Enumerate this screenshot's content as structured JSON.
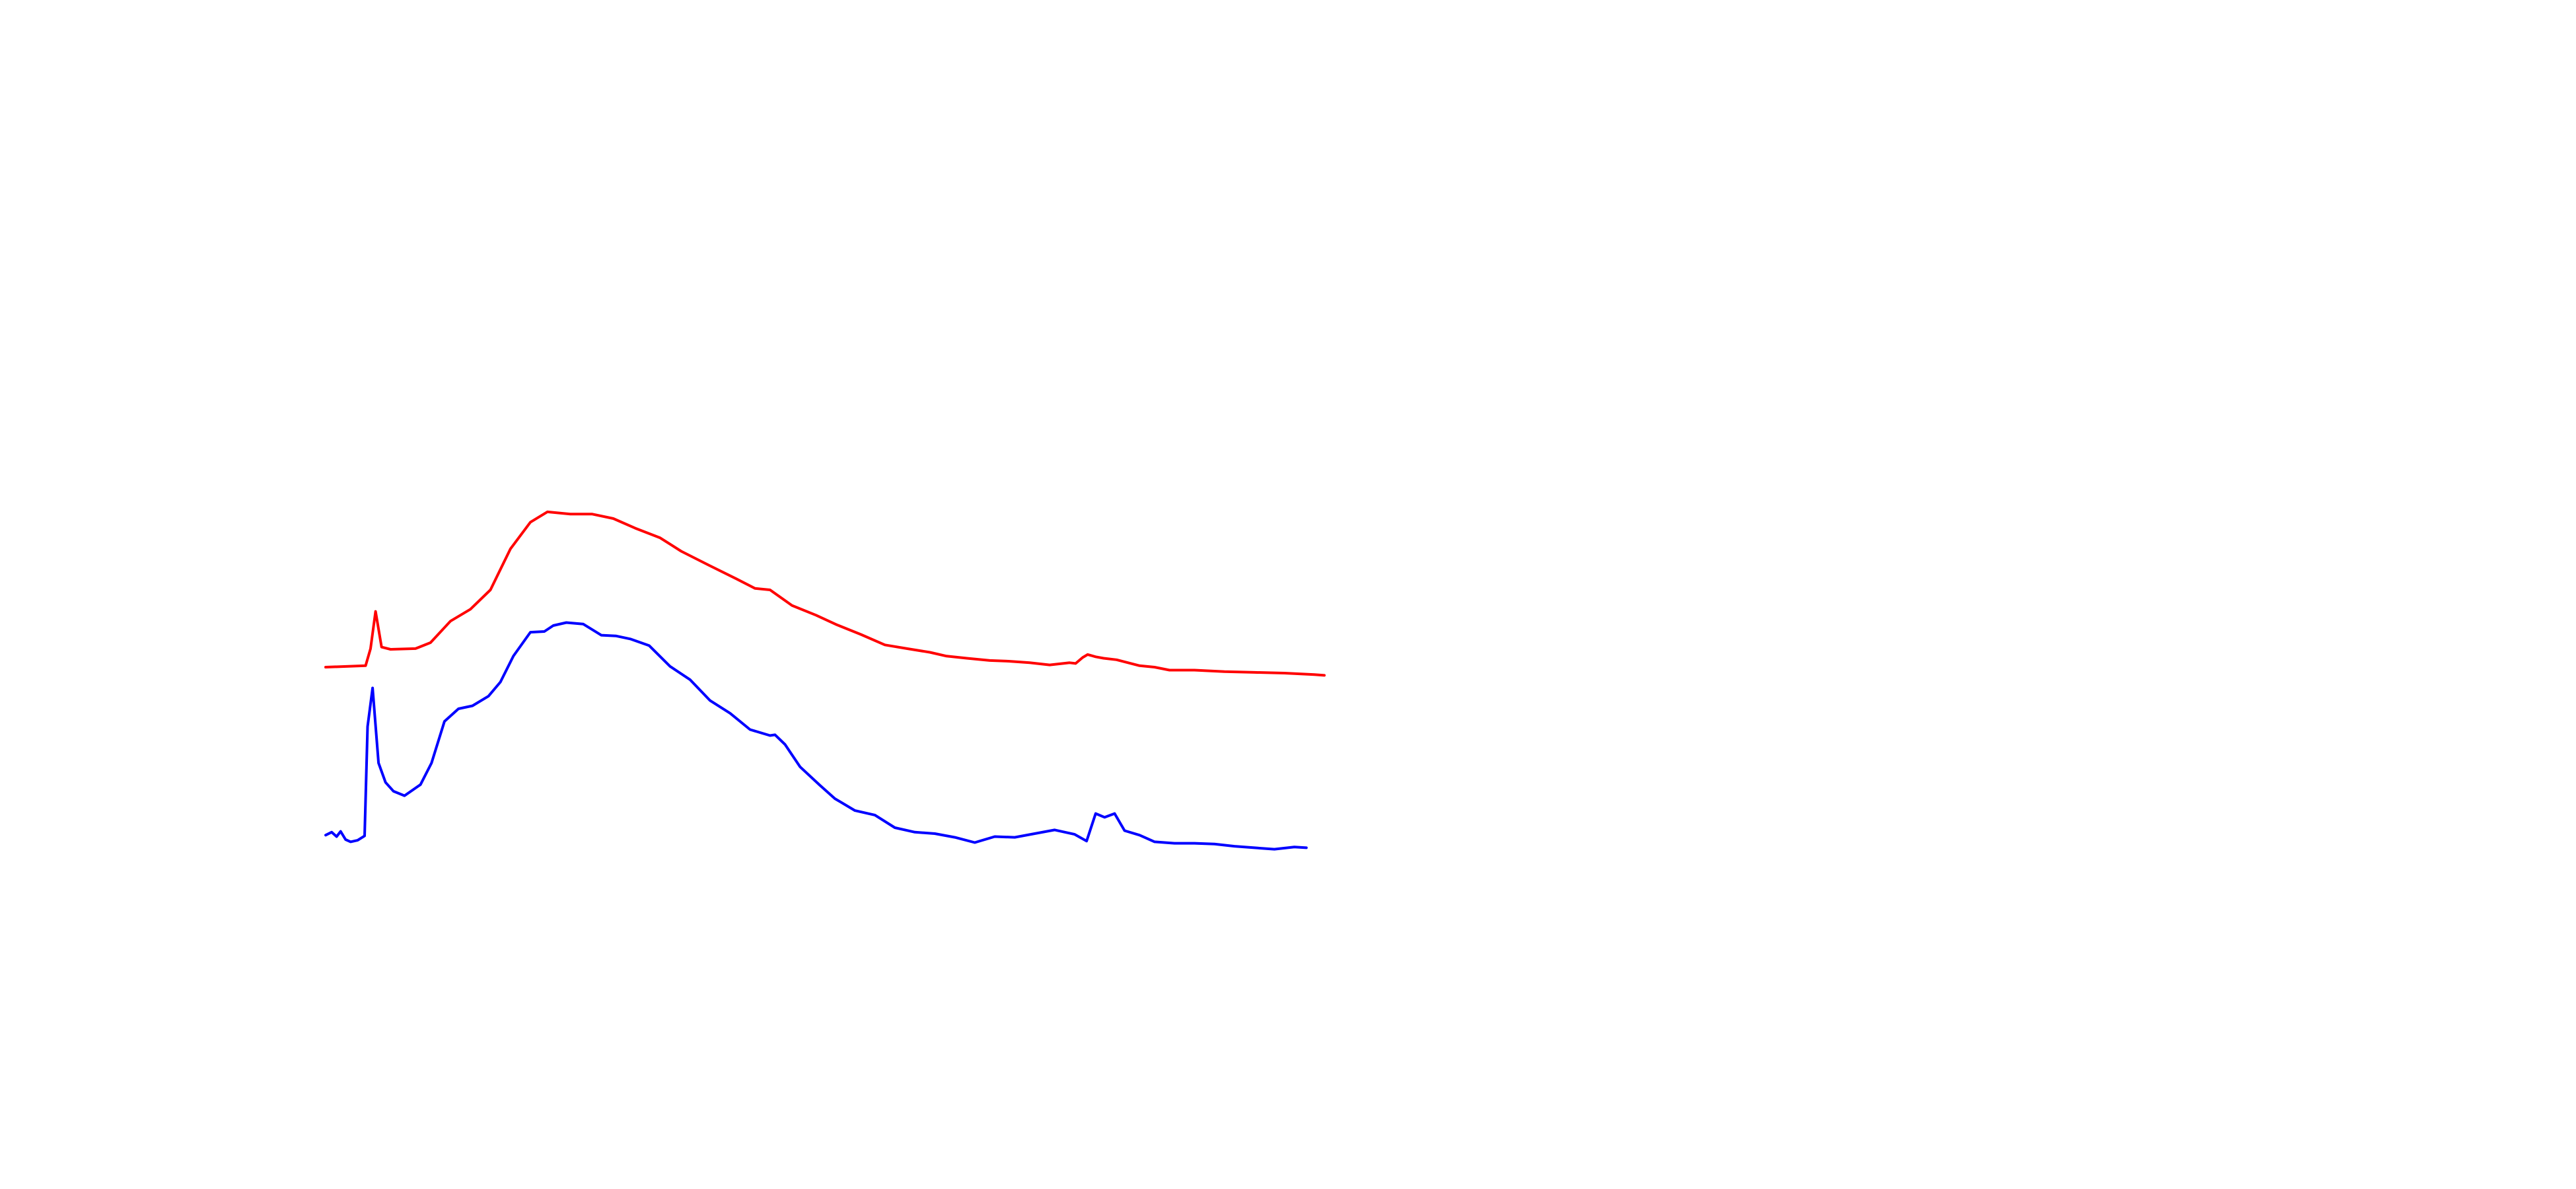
{
  "chart_data": {
    "type": "line",
    "title": "",
    "xlabel": "",
    "ylabel": "",
    "axes_visible": false,
    "grid": false,
    "legend": "none",
    "x_range": [
      0,
      100
    ],
    "y_range": [
      0,
      100
    ],
    "series": [
      {
        "color": "#ff0000",
        "points": [
          [
            0,
            44
          ],
          [
            4,
            44.2
          ],
          [
            4.5,
            46.5
          ],
          [
            5,
            51.5
          ],
          [
            5.6,
            46.7
          ],
          [
            6.5,
            46.4
          ],
          [
            9,
            46.5
          ],
          [
            10.5,
            47.3
          ],
          [
            12.5,
            50.2
          ],
          [
            14.5,
            51.8
          ],
          [
            16.5,
            54.4
          ],
          [
            18.5,
            59.9
          ],
          [
            20.5,
            63.5
          ],
          [
            22.2,
            64.9
          ],
          [
            24.5,
            64.6
          ],
          [
            26.7,
            64.6
          ],
          [
            28.8,
            64.0
          ],
          [
            31,
            62.7
          ],
          [
            33.5,
            61.4
          ],
          [
            35.6,
            59.6
          ],
          [
            38.4,
            57.7
          ],
          [
            41.1,
            55.9
          ],
          [
            43,
            54.6
          ],
          [
            44.5,
            54.4
          ],
          [
            46.7,
            52.3
          ],
          [
            49.1,
            51.0
          ],
          [
            51.2,
            49.7
          ],
          [
            53.6,
            48.4
          ],
          [
            56,
            47.0
          ],
          [
            58.2,
            46.5
          ],
          [
            60.5,
            46.0
          ],
          [
            62.1,
            45.5
          ],
          [
            64.2,
            45.2
          ],
          [
            66.5,
            44.9
          ],
          [
            68.4,
            44.8
          ],
          [
            70.5,
            44.6
          ],
          [
            72.5,
            44.3
          ],
          [
            74.5,
            44.6
          ],
          [
            75.1,
            44.5
          ],
          [
            75.8,
            45.3
          ],
          [
            76.3,
            45.7
          ],
          [
            77.1,
            45.4
          ],
          [
            77.9,
            45.2
          ],
          [
            79.2,
            45.0
          ],
          [
            81.5,
            44.2
          ],
          [
            83,
            44.0
          ],
          [
            84.5,
            43.6
          ],
          [
            87,
            43.6
          ],
          [
            90,
            43.4
          ],
          [
            93,
            43.3
          ],
          [
            96,
            43.2
          ],
          [
            99,
            43.0
          ],
          [
            100,
            42.9
          ]
        ]
      },
      {
        "color": "#0000ff",
        "points": [
          [
            0,
            21.4
          ],
          [
            0.6,
            21.8
          ],
          [
            1.1,
            21.2
          ],
          [
            1.5,
            21.9
          ],
          [
            2,
            20.8
          ],
          [
            2.5,
            20.5
          ],
          [
            3.2,
            20.7
          ],
          [
            3.9,
            21.3
          ],
          [
            4.2,
            36
          ],
          [
            4.7,
            41.2
          ],
          [
            5.3,
            31.1
          ],
          [
            6,
            28.5
          ],
          [
            6.8,
            27.3
          ],
          [
            7.9,
            26.7
          ],
          [
            9.5,
            28.2
          ],
          [
            10.6,
            31.1
          ],
          [
            11.9,
            36.7
          ],
          [
            13.3,
            38.4
          ],
          [
            14.7,
            38.8
          ],
          [
            16.3,
            40.1
          ],
          [
            17.5,
            42.0
          ],
          [
            18.8,
            45.5
          ],
          [
            20.5,
            48.7
          ],
          [
            21.9,
            48.8
          ],
          [
            22.8,
            49.6
          ],
          [
            24.1,
            50.0
          ],
          [
            25.8,
            49.8
          ],
          [
            27.6,
            48.3
          ],
          [
            29.1,
            48.2
          ],
          [
            30.5,
            47.8
          ],
          [
            32.4,
            46.9
          ],
          [
            34.5,
            44.1
          ],
          [
            36.5,
            42.3
          ],
          [
            38.5,
            39.5
          ],
          [
            40.5,
            37.8
          ],
          [
            42.5,
            35.6
          ],
          [
            44.5,
            34.8
          ],
          [
            45,
            34.9
          ],
          [
            46,
            33.6
          ],
          [
            47.5,
            30.6
          ],
          [
            49.5,
            28.1
          ],
          [
            51,
            26.3
          ],
          [
            53,
            24.7
          ],
          [
            55,
            24.1
          ],
          [
            57,
            22.4
          ],
          [
            59,
            21.8
          ],
          [
            61,
            21.6
          ],
          [
            63,
            21.1
          ],
          [
            65,
            20.4
          ],
          [
            67,
            21.2
          ],
          [
            69,
            21.1
          ],
          [
            71,
            21.6
          ],
          [
            73,
            22.1
          ],
          [
            75,
            21.5
          ],
          [
            76.2,
            20.6
          ],
          [
            77.1,
            24.3
          ],
          [
            78,
            23.8
          ],
          [
            79,
            24.3
          ],
          [
            80,
            22.0
          ],
          [
            81.5,
            21.4
          ],
          [
            83,
            20.5
          ],
          [
            85,
            20.3
          ],
          [
            87,
            20.3
          ],
          [
            89,
            20.2
          ],
          [
            91,
            19.9
          ],
          [
            93,
            19.7
          ],
          [
            95,
            19.5
          ],
          [
            97,
            19.8
          ],
          [
            98.2,
            19.7
          ]
        ]
      }
    ]
  }
}
